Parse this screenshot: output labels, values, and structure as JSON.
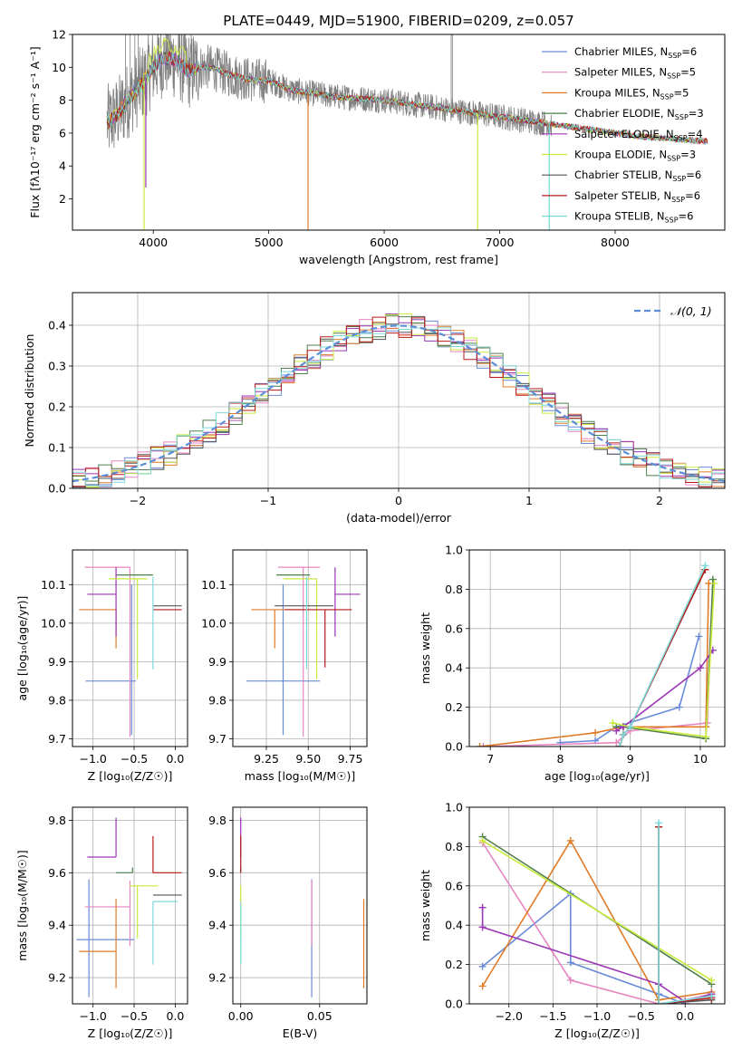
{
  "title": "PLATE=0449, MJD=51900, FIBERID=0209, z=0.057",
  "colors": {
    "series": [
      "#6a8bd9",
      "#e686c0",
      "#e07b28",
      "#4f7f4f",
      "#9b36b5",
      "#c9ec3a",
      "#555555",
      "#b81a1a",
      "#7ed9d9"
    ],
    "data_spectrum": "#808080",
    "gauss": "#5b8ed6",
    "grid": "#b0b0b0"
  },
  "chart_data": [
    {
      "type": "line",
      "panel": "spectrum",
      "xlabel": "wavelength [Angstrom, rest frame]",
      "ylabel": "Flux [fλ10⁻¹⁷ erg cm⁻² s⁻¹ A⁻¹]",
      "xlim": [
        3300,
        8950
      ],
      "ylim": [
        0.1,
        12
      ],
      "xticks": [
        "4000",
        "5000",
        "6000",
        "7000",
        "8000"
      ],
      "yticks": [
        "2",
        "4",
        "6",
        "8",
        "10",
        "12"
      ],
      "grid": false,
      "legend_position": "top-right",
      "legend": [
        {
          "base": "Chabrier MILES, N",
          "sub": "SSP",
          "tail": "=6"
        },
        {
          "base": "Salpeter MILES, N",
          "sub": "SSP",
          "tail": "=5"
        },
        {
          "base": "Kroupa MILES, N",
          "sub": "SSP",
          "tail": "=5"
        },
        {
          "base": "Chabrier ELODIE, N",
          "sub": "SSP",
          "tail": "=3"
        },
        {
          "base": "Salpeter ELODIE, N",
          "sub": "SSP",
          "tail": "=4"
        },
        {
          "base": "Kroupa ELODIE, N",
          "sub": "SSP",
          "tail": "=3"
        },
        {
          "base": "Chabrier STELIB, N",
          "sub": "SSP",
          "tail": "=6"
        },
        {
          "base": "Salpeter STELIB, N",
          "sub": "SSP",
          "tail": "=6"
        },
        {
          "base": "Kroupa STELIB, N",
          "sub": "SSP",
          "tail": "=6"
        }
      ],
      "model_continuum": {
        "x": [
          3600,
          3700,
          3800,
          3900,
          4000,
          4100,
          4200,
          4300,
          4400,
          4500,
          4600,
          4700,
          4800,
          4900,
          5000,
          5200,
          5400,
          5600,
          5800,
          6000,
          6200,
          6400,
          6600,
          6800,
          7000,
          7200,
          7400,
          7600,
          7800,
          8000,
          8200,
          8400,
          8600,
          8800
        ],
        "y": [
          6.6,
          7.2,
          8.2,
          9.0,
          10.0,
          10.6,
          10.4,
          9.8,
          10.0,
          10.0,
          9.7,
          9.5,
          9.3,
          9.2,
          9.2,
          8.6,
          8.4,
          8.2,
          8.1,
          8.0,
          7.8,
          7.6,
          7.4,
          7.2,
          7.0,
          6.8,
          6.6,
          6.4,
          6.2,
          6.0,
          5.8,
          5.7,
          5.6,
          5.5
        ]
      },
      "data_range": [
        3600,
        7450
      ],
      "spikes": [
        {
          "x": 3920,
          "y": 0.1,
          "series": 5
        },
        {
          "x": 3935,
          "y": 2.7,
          "series": 4
        },
        {
          "x": 5340,
          "y": 0.1,
          "series": 2
        },
        {
          "x": 6810,
          "y": 0.1,
          "series": 5
        },
        {
          "x": 7430,
          "y": 0.1,
          "series": 8
        }
      ]
    },
    {
      "type": "line",
      "panel": "residual-histogram",
      "xlabel": "(data-model)/error",
      "ylabel": "Normed distribution",
      "xlim": [
        -2.5,
        2.5
      ],
      "ylim": [
        0,
        0.48
      ],
      "xticks": [
        "−2",
        "−1",
        "0",
        "1",
        "2"
      ],
      "yticks": [
        "0.0",
        "0.1",
        "0.2",
        "0.3",
        "0.4"
      ],
      "grid": true,
      "legend_position": "top-right",
      "legend_label": "𝒩(0, 1)",
      "bin_width": 0.1,
      "curve": "normal pdf, mean 0, sd 1"
    },
    {
      "type": "scatter",
      "panel": "age-vs-metallicity",
      "xlabel": "Z [log₁₀(Z/Z☉)]",
      "ylabel": "age  [log₁₀(age/yr)]",
      "xlim": [
        -1.25,
        0.15
      ],
      "ylim": [
        9.68,
        10.19
      ],
      "xticks": [
        "−1.0",
        "−0.5",
        "0.0"
      ],
      "yticks": [
        "9.7",
        "9.8",
        "9.9",
        "10.0",
        "10.1"
      ],
      "grid": true,
      "points": [
        {
          "series": 0,
          "x": -0.53,
          "xerr": [
            0.56,
            0.05
          ],
          "y": 9.85,
          "yerr": [
            0.14,
            0.25
          ]
        },
        {
          "series": 1,
          "x": -0.55,
          "xerr": [
            0.55,
            0.0
          ],
          "y": 10.145,
          "yerr": [
            0.44,
            0.0
          ]
        },
        {
          "series": 2,
          "x": -0.72,
          "xerr": [
            0.45,
            0.0
          ],
          "y": 10.035,
          "yerr": [
            0.1,
            0.0
          ]
        },
        {
          "series": 3,
          "x": -0.27,
          "xerr": [
            0.45,
            0.0
          ],
          "y": 10.125,
          "yerr": [
            0.0,
            0.0
          ]
        },
        {
          "series": 4,
          "x": -0.72,
          "xerr": [
            0.35,
            0.0
          ],
          "y": 10.075,
          "yerr": [
            0.11,
            0.07
          ]
        },
        {
          "series": 5,
          "x": -0.46,
          "xerr": [
            0.35,
            0.12
          ],
          "y": 10.115,
          "yerr": [
            0.26,
            0.0
          ]
        },
        {
          "series": 6,
          "x": -0.27,
          "xerr": [
            0.0,
            0.35
          ],
          "y": 10.045,
          "yerr": [
            0.0,
            0.0
          ]
        },
        {
          "series": 7,
          "x": -0.27,
          "xerr": [
            0.0,
            0.35
          ],
          "y": 10.035,
          "yerr": [
            0.0,
            0.0
          ]
        },
        {
          "series": 8,
          "x": -0.27,
          "xerr": [
            0.0,
            0.0
          ],
          "y": 10.12,
          "yerr": [
            0.24,
            0.0
          ]
        }
      ]
    },
    {
      "type": "scatter",
      "panel": "age-vs-mass",
      "xlabel": "mass [log₁₀(M/M☉)]",
      "ylabel": "",
      "xlim": [
        9.05,
        9.85
      ],
      "ylim": [
        9.68,
        10.19
      ],
      "xticks": [
        "9.25",
        "9.50",
        "9.75"
      ],
      "yticks": [
        "9.7",
        "9.8",
        "9.9",
        "10.0",
        "10.1"
      ],
      "grid": true,
      "points": [
        {
          "series": 0,
          "x": 9.35,
          "xerr": [
            0.22,
            0.22
          ],
          "y": 9.85,
          "yerr": [
            0.14,
            0.25
          ]
        },
        {
          "series": 1,
          "x": 9.47,
          "xerr": [
            0.15,
            0.1
          ],
          "y": 10.145,
          "yerr": [
            0.44,
            0.0
          ]
        },
        {
          "series": 2,
          "x": 9.3,
          "xerr": [
            0.14,
            0.2
          ],
          "y": 10.035,
          "yerr": [
            0.1,
            0.0
          ]
        },
        {
          "series": 3,
          "x": 9.51,
          "xerr": [
            0.2,
            0.0
          ],
          "y": 10.125,
          "yerr": [
            0.0,
            0.0
          ]
        },
        {
          "series": 4,
          "x": 9.66,
          "xerr": [
            0.0,
            0.15
          ],
          "y": 10.075,
          "yerr": [
            0.11,
            0.07
          ]
        },
        {
          "series": 5,
          "x": 9.55,
          "xerr": [
            0.2,
            0.0
          ],
          "y": 10.115,
          "yerr": [
            0.26,
            0.0
          ]
        },
        {
          "series": 6,
          "x": 9.5,
          "xerr": [
            0.2,
            0.15
          ],
          "y": 10.045,
          "yerr": [
            0.0,
            0.0
          ]
        },
        {
          "series": 7,
          "x": 9.6,
          "xerr": [
            0.24,
            0.16
          ],
          "y": 10.035,
          "yerr": [
            0.15,
            0.0
          ]
        },
        {
          "series": 8,
          "x": 9.49,
          "xerr": [
            0.0,
            0.0
          ],
          "y": 10.12,
          "yerr": [
            0.24,
            0.0
          ]
        }
      ]
    },
    {
      "type": "line",
      "panel": "mass-weight-vs-age",
      "xlabel": "age  [log₁₀(age/yr)]",
      "ylabel": "mass weight",
      "xlim": [
        6.7,
        10.35
      ],
      "ylim": [
        0,
        1.0
      ],
      "xticks": [
        "7",
        "8",
        "9",
        "10"
      ],
      "yticks": [
        "0.0",
        "0.2",
        "0.4",
        "0.6",
        "0.8",
        "1.0"
      ],
      "grid": true,
      "series": [
        {
          "x": [
            8.0,
            8.5,
            8.8,
            9.7,
            9.98
          ],
          "y": [
            0.02,
            0.03,
            0.1,
            0.2,
            0.56
          ]
        },
        {
          "x": [
            6.9,
            8.8,
            9.0,
            10.1,
            10.18
          ],
          "y": [
            0.0,
            0.02,
            0.08,
            0.12,
            0.83
          ]
        },
        {
          "x": [
            6.85,
            8.5,
            8.9,
            10.08,
            10.12
          ],
          "y": [
            0.0,
            0.07,
            0.1,
            0.1,
            0.83
          ]
        },
        {
          "x": [
            8.8,
            8.9,
            10.08,
            10.18
          ],
          "y": [
            0.1,
            0.1,
            0.04,
            0.85
          ]
        },
        {
          "x": [
            8.8,
            8.9,
            10.0,
            10.18
          ],
          "y": [
            0.08,
            0.1,
            0.4,
            0.49
          ]
        },
        {
          "x": [
            8.75,
            9.0,
            10.08,
            10.2
          ],
          "y": [
            0.12,
            0.1,
            0.05,
            0.83
          ]
        },
        {
          "x": [
            8.85,
            8.9,
            9.0,
            10.07
          ],
          "y": [
            0.0,
            0.06,
            0.1,
            0.9
          ]
        },
        {
          "x": [
            8.85,
            8.9,
            9.0,
            10.07
          ],
          "y": [
            0.0,
            0.06,
            0.1,
            0.9
          ]
        },
        {
          "x": [
            8.85,
            8.9,
            9.0,
            10.07
          ],
          "y": [
            0.0,
            0.06,
            0.1,
            0.92
          ]
        }
      ]
    },
    {
      "type": "scatter",
      "panel": "mass-vs-metallicity",
      "xlabel": "Z [log₁₀(Z/Z☉)]",
      "ylabel": "mass [log₁₀(M/M☉)]",
      "xlim": [
        -1.25,
        0.15
      ],
      "ylim": [
        9.1,
        9.85
      ],
      "xticks": [
        "−1.0",
        "−0.5",
        "0.0"
      ],
      "yticks": [
        "9.2",
        "9.4",
        "9.6",
        "9.8"
      ],
      "grid": true,
      "points": [
        {
          "series": 0,
          "x": -1.05,
          "xerr": [
            0.15,
            0.55
          ],
          "y": 9.345,
          "yerr": [
            0.22,
            0.23
          ]
        },
        {
          "series": 1,
          "x": -0.55,
          "xerr": [
            0.55,
            0.0
          ],
          "y": 9.47,
          "yerr": [
            0.15,
            0.1
          ]
        },
        {
          "series": 2,
          "x": -0.72,
          "xerr": [
            0.45,
            0.0
          ],
          "y": 9.3,
          "yerr": [
            0.14,
            0.2
          ]
        },
        {
          "series": 3,
          "x": -0.52,
          "xerr": [
            0.2,
            0.0
          ],
          "y": 9.6,
          "yerr": [
            0.0,
            0.02
          ]
        },
        {
          "series": 4,
          "x": -0.72,
          "xerr": [
            0.35,
            0.0
          ],
          "y": 9.66,
          "yerr": [
            0.0,
            0.15
          ]
        },
        {
          "series": 5,
          "x": -0.46,
          "xerr": [
            0.1,
            0.25
          ],
          "y": 9.55,
          "yerr": [
            0.2,
            0.0
          ]
        },
        {
          "series": 6,
          "x": -0.27,
          "xerr": [
            0.0,
            0.35
          ],
          "y": 9.515,
          "yerr": [
            0.0,
            0.0
          ]
        },
        {
          "series": 7,
          "x": -0.27,
          "xerr": [
            0.0,
            0.35
          ],
          "y": 9.6,
          "yerr": [
            0.0,
            0.14
          ]
        },
        {
          "series": 8,
          "x": -0.27,
          "xerr": [
            0.0,
            0.3
          ],
          "y": 9.49,
          "yerr": [
            0.24,
            0.0
          ]
        }
      ]
    },
    {
      "type": "scatter",
      "panel": "mass-vs-extinction",
      "xlabel": "E(B-V)",
      "ylabel": "",
      "xlim": [
        -0.005,
        0.08
      ],
      "ylim": [
        9.1,
        9.85
      ],
      "xticks": [
        "0.00",
        "0.05"
      ],
      "yticks": [
        "9.2",
        "9.4",
        "9.6",
        "9.8"
      ],
      "grid": true,
      "points": [
        {
          "series": 0,
          "x": 0.045,
          "xerr": [
            0,
            0
          ],
          "y": 9.345,
          "yerr": [
            0.22,
            0.23
          ]
        },
        {
          "series": 1,
          "x": 0.045,
          "xerr": [
            0,
            0
          ],
          "y": 9.47,
          "yerr": [
            0.15,
            0.1
          ]
        },
        {
          "series": 2,
          "x": 0.078,
          "xerr": [
            0,
            0
          ],
          "y": 9.3,
          "yerr": [
            0.14,
            0.2
          ]
        },
        {
          "series": 3,
          "x": 0.0,
          "xerr": [
            0,
            0
          ],
          "y": 9.6,
          "yerr": [
            0.0,
            0.02
          ]
        },
        {
          "series": 4,
          "x": 0.0,
          "xerr": [
            0,
            0
          ],
          "y": 9.66,
          "yerr": [
            0.0,
            0.15
          ]
        },
        {
          "series": 5,
          "x": 0.0,
          "xerr": [
            0,
            0
          ],
          "y": 9.55,
          "yerr": [
            0.2,
            0.0
          ]
        },
        {
          "series": 6,
          "x": 0.0,
          "xerr": [
            0,
            0
          ],
          "y": 9.515,
          "yerr": [
            0.0,
            0.0
          ]
        },
        {
          "series": 7,
          "x": 0.0,
          "xerr": [
            0,
            0
          ],
          "y": 9.6,
          "yerr": [
            0.0,
            0.14
          ]
        },
        {
          "series": 8,
          "x": 0.0,
          "xerr": [
            0,
            0
          ],
          "y": 9.49,
          "yerr": [
            0.24,
            0.0
          ]
        }
      ]
    },
    {
      "type": "line",
      "panel": "mass-weight-vs-metallicity",
      "xlabel": "Z [log₁₀(Z/Z☉)]",
      "ylabel": "mass weight",
      "xlim": [
        -2.45,
        0.45
      ],
      "ylim": [
        0,
        1.0
      ],
      "xticks": [
        "−2.0",
        "−1.5",
        "−1.0",
        "−0.5",
        "0.0"
      ],
      "yticks": [
        "0.0",
        "0.2",
        "0.4",
        "0.6",
        "0.8",
        "1.0"
      ],
      "grid": true,
      "series": [
        {
          "x": [
            -2.3,
            -1.3,
            -1.3,
            -0.3,
            0.0
          ],
          "y": [
            0.19,
            0.56,
            0.21,
            0.05,
            0.0
          ]
        },
        {
          "x": [
            -2.3,
            -1.3,
            -0.3,
            0.0,
            0.3
          ],
          "y": [
            0.82,
            0.12,
            0.0,
            0.02,
            0.05
          ]
        },
        {
          "x": [
            -2.3,
            -1.3,
            -0.3,
            0.3
          ],
          "y": [
            0.09,
            0.83,
            0.02,
            0.06
          ]
        },
        {
          "x": [
            -2.3,
            0.3
          ],
          "y": [
            0.85,
            0.1
          ]
        },
        {
          "x": [
            -2.3,
            -2.3,
            -0.3,
            0.0,
            0.3
          ],
          "y": [
            0.49,
            0.39,
            0.1,
            0.01,
            0.05
          ]
        },
        {
          "x": [
            -2.3,
            0.3
          ],
          "y": [
            0.83,
            0.12
          ]
        },
        {
          "x": [
            -0.3,
            -0.3,
            0.3
          ],
          "y": [
            0.9,
            0.0,
            0.02
          ]
        },
        {
          "x": [
            -0.3,
            -0.3,
            0.3
          ],
          "y": [
            0.9,
            0.0,
            0.03
          ]
        },
        {
          "x": [
            -0.3,
            -0.3,
            0.3
          ],
          "y": [
            0.92,
            0.0,
            0.04
          ]
        }
      ]
    }
  ]
}
